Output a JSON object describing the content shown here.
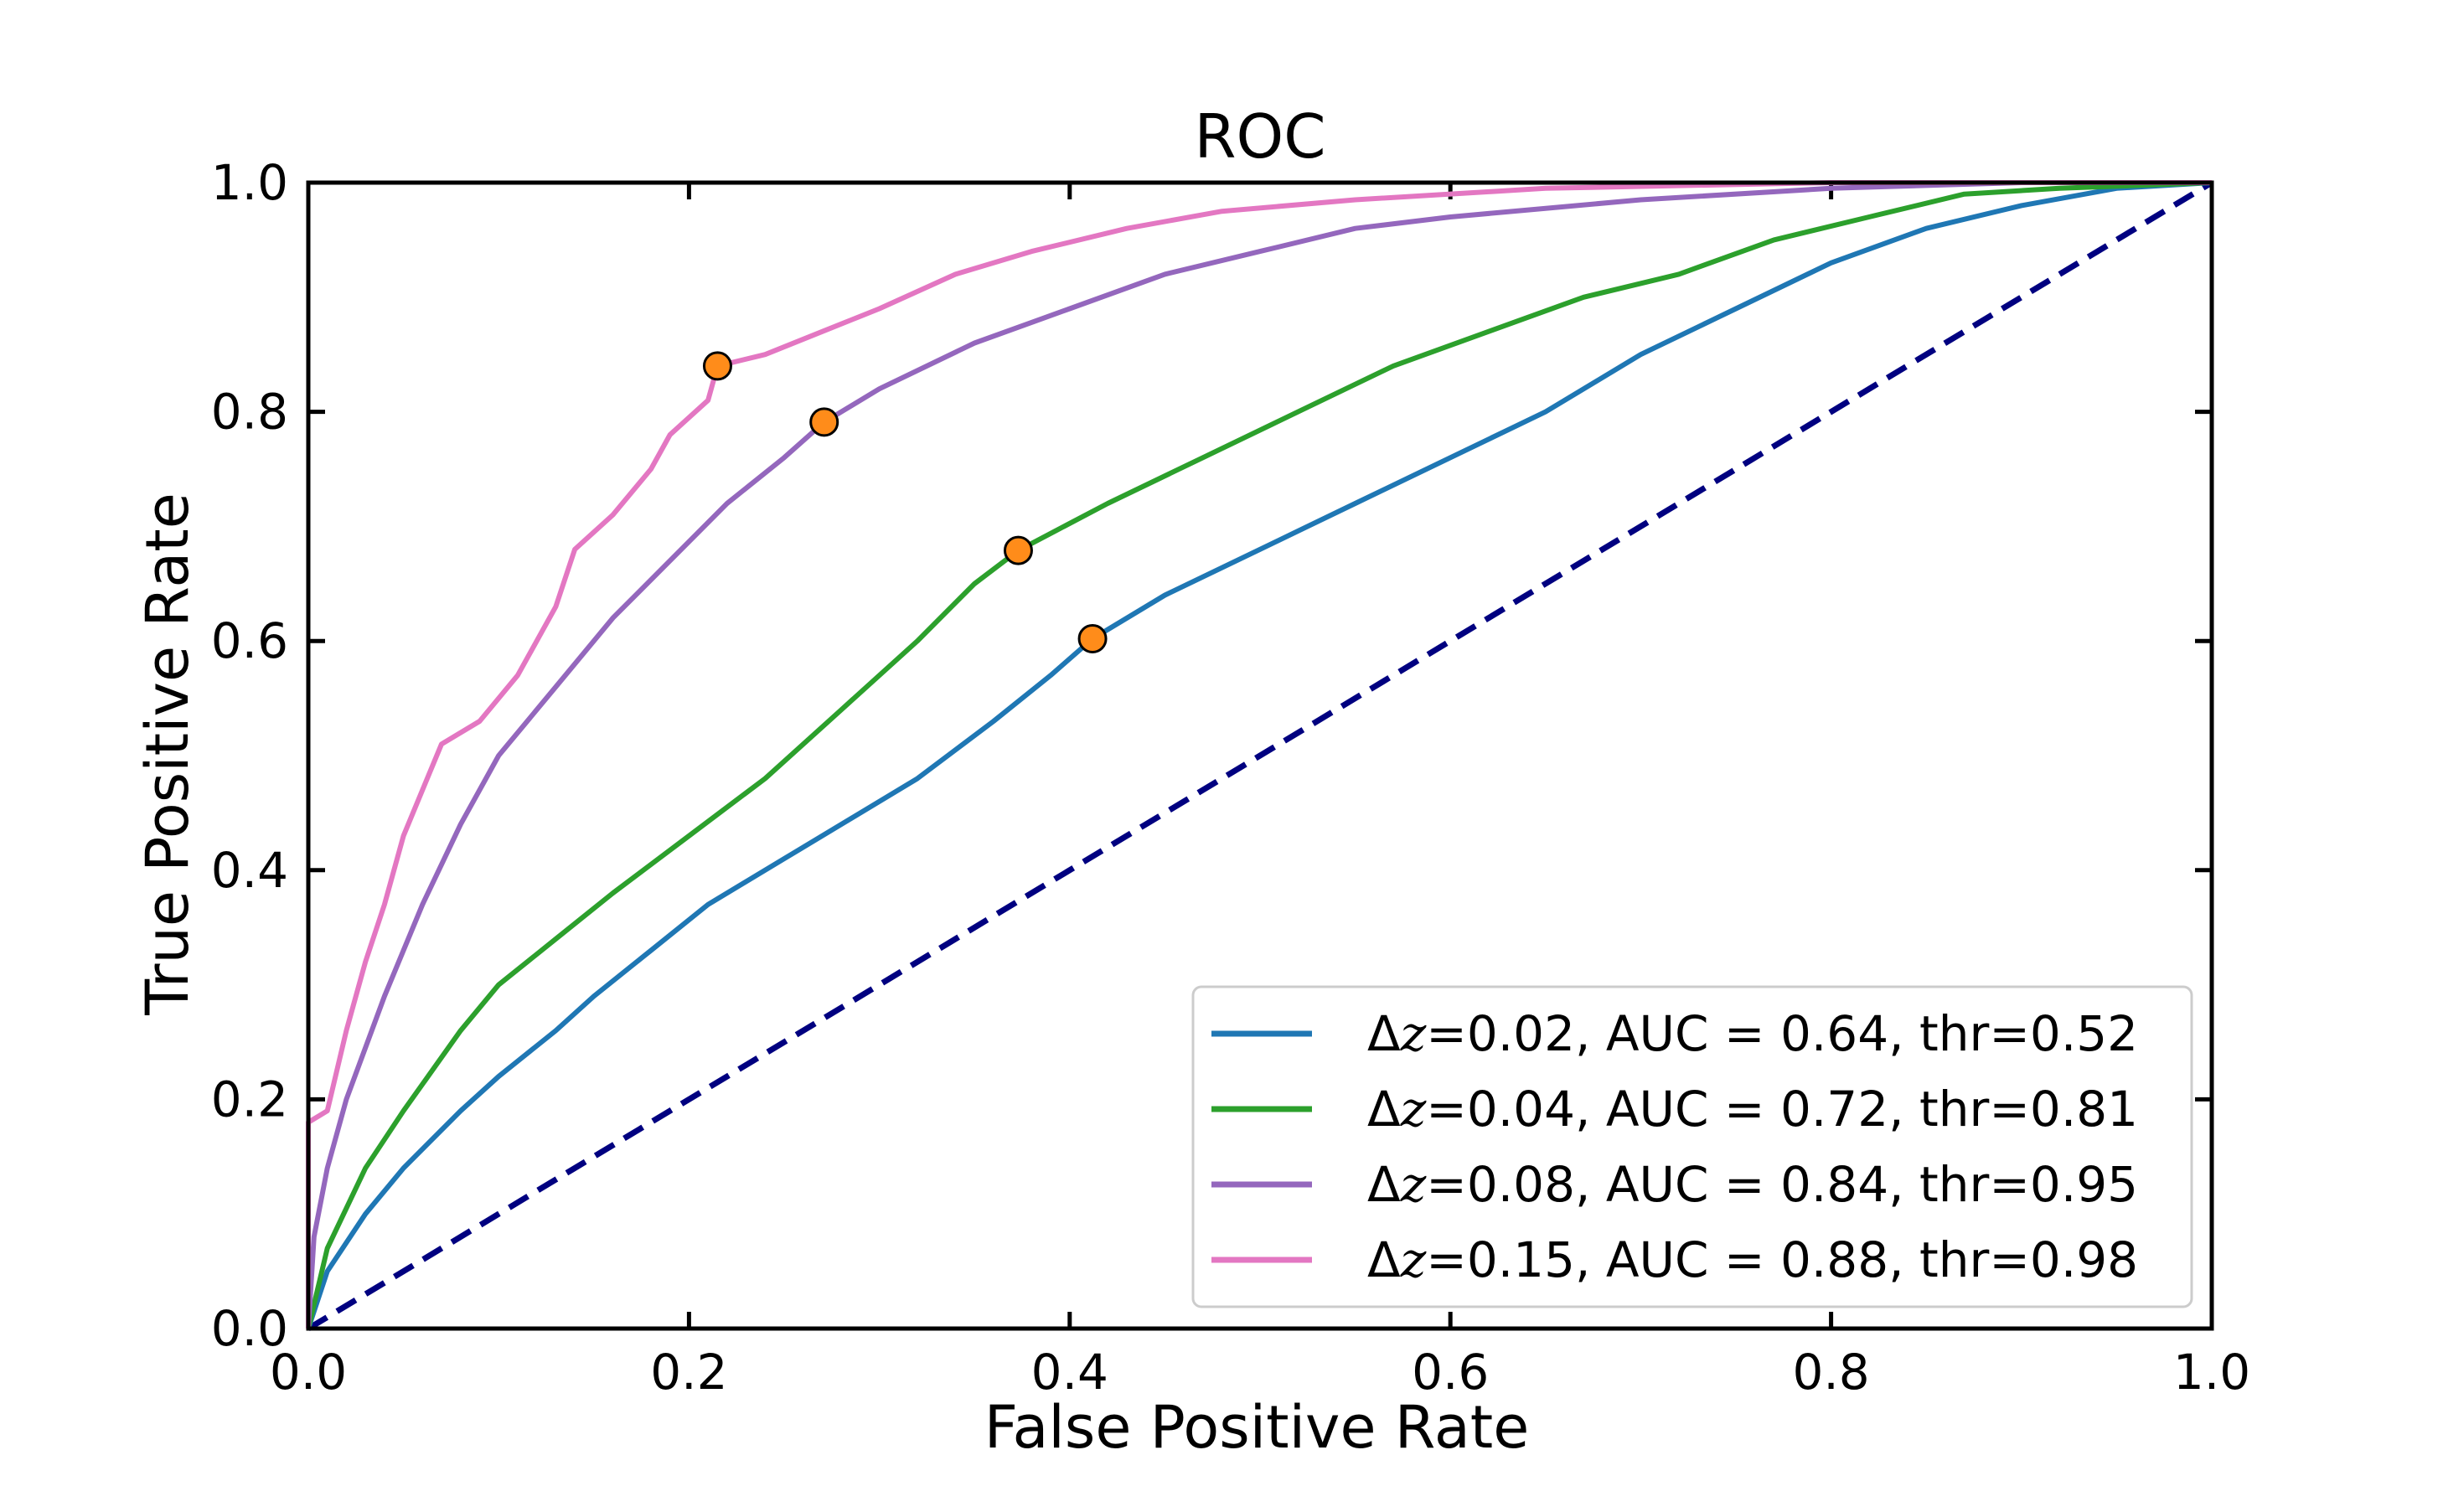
{
  "chart_data": {
    "type": "line",
    "title": "ROC",
    "xlabel": "False Positive Rate",
    "ylabel": "True Positive Rate",
    "xlim": [
      0.0,
      1.0
    ],
    "ylim": [
      0.0,
      1.0
    ],
    "xticks": [
      "0.0",
      "0.2",
      "0.4",
      "0.6",
      "0.8",
      "1.0"
    ],
    "yticks": [
      "0.0",
      "0.2",
      "0.4",
      "0.6",
      "0.8",
      "1.0"
    ],
    "grid": false,
    "legend_position": "lower-right",
    "reference_lines": [
      {
        "name": "perfect",
        "points": [
          [
            0,
            1
          ],
          [
            1,
            1
          ]
        ],
        "color": "#000000",
        "style": "dashed"
      },
      {
        "name": "chance",
        "points": [
          [
            0,
            0
          ],
          [
            1,
            1
          ]
        ],
        "color": "#000080",
        "style": "dashed"
      }
    ],
    "marker_color": "#ff8c1a",
    "series": [
      {
        "name": "Δz=0.02, AUC = 0.64, thr=0.52",
        "label_prefix": "Δ",
        "label_var": "z",
        "label_suffix": "=0.02, AUC = 0.64, thr=0.52",
        "color": "#1f77b4",
        "threshold_point": [
          0.412,
          0.602
        ],
        "points": [
          [
            0,
            0
          ],
          [
            0.01,
            0.05
          ],
          [
            0.03,
            0.1
          ],
          [
            0.05,
            0.14
          ],
          [
            0.08,
            0.19
          ],
          [
            0.1,
            0.22
          ],
          [
            0.13,
            0.26
          ],
          [
            0.15,
            0.29
          ],
          [
            0.18,
            0.33
          ],
          [
            0.21,
            0.37
          ],
          [
            0.25,
            0.41
          ],
          [
            0.28,
            0.44
          ],
          [
            0.32,
            0.48
          ],
          [
            0.36,
            0.53
          ],
          [
            0.39,
            0.57
          ],
          [
            0.412,
            0.602
          ],
          [
            0.45,
            0.64
          ],
          [
            0.5,
            0.68
          ],
          [
            0.55,
            0.72
          ],
          [
            0.6,
            0.76
          ],
          [
            0.65,
            0.8
          ],
          [
            0.7,
            0.85
          ],
          [
            0.75,
            0.89
          ],
          [
            0.8,
            0.93
          ],
          [
            0.85,
            0.96
          ],
          [
            0.9,
            0.98
          ],
          [
            0.95,
            0.995
          ],
          [
            1,
            1
          ]
        ]
      },
      {
        "name": "Δz=0.04, AUC = 0.72, thr=0.81",
        "label_prefix": "Δ",
        "label_var": "z",
        "label_suffix": "=0.04, AUC = 0.72, thr=0.81",
        "color": "#2ca02c",
        "threshold_point": [
          0.373,
          0.679
        ],
        "points": [
          [
            0,
            0
          ],
          [
            0.01,
            0.07
          ],
          [
            0.03,
            0.14
          ],
          [
            0.05,
            0.19
          ],
          [
            0.08,
            0.26
          ],
          [
            0.1,
            0.3
          ],
          [
            0.13,
            0.34
          ],
          [
            0.16,
            0.38
          ],
          [
            0.2,
            0.43
          ],
          [
            0.24,
            0.48
          ],
          [
            0.28,
            0.54
          ],
          [
            0.32,
            0.6
          ],
          [
            0.35,
            0.65
          ],
          [
            0.373,
            0.679
          ],
          [
            0.42,
            0.72
          ],
          [
            0.47,
            0.76
          ],
          [
            0.52,
            0.8
          ],
          [
            0.57,
            0.84
          ],
          [
            0.62,
            0.87
          ],
          [
            0.67,
            0.9
          ],
          [
            0.72,
            0.92
          ],
          [
            0.77,
            0.95
          ],
          [
            0.82,
            0.97
          ],
          [
            0.87,
            0.99
          ],
          [
            0.92,
            0.995
          ],
          [
            1,
            1
          ]
        ]
      },
      {
        "name": "Δz=0.08, AUC = 0.84, thr=0.95",
        "label_prefix": "Δ",
        "label_var": "z",
        "label_suffix": "=0.08, AUC = 0.84, thr=0.95",
        "color": "#9467bd",
        "threshold_point": [
          0.271,
          0.791
        ],
        "points": [
          [
            0,
            0
          ],
          [
            0.003,
            0.08
          ],
          [
            0.01,
            0.14
          ],
          [
            0.02,
            0.2
          ],
          [
            0.04,
            0.29
          ],
          [
            0.06,
            0.37
          ],
          [
            0.08,
            0.44
          ],
          [
            0.1,
            0.5
          ],
          [
            0.13,
            0.56
          ],
          [
            0.16,
            0.62
          ],
          [
            0.19,
            0.67
          ],
          [
            0.22,
            0.72
          ],
          [
            0.25,
            0.76
          ],
          [
            0.271,
            0.791
          ],
          [
            0.3,
            0.82
          ],
          [
            0.35,
            0.86
          ],
          [
            0.4,
            0.89
          ],
          [
            0.45,
            0.92
          ],
          [
            0.5,
            0.94
          ],
          [
            0.55,
            0.96
          ],
          [
            0.6,
            0.97
          ],
          [
            0.7,
            0.985
          ],
          [
            0.8,
            0.995
          ],
          [
            0.9,
            1.0
          ],
          [
            1,
            1
          ]
        ]
      },
      {
        "name": "Δz=0.15, AUC = 0.88, thr=0.98",
        "label_prefix": "Δ",
        "label_var": "z",
        "label_suffix": "=0.15, AUC = 0.88, thr=0.98",
        "color": "#e377c2",
        "threshold_point": [
          0.215,
          0.84
        ],
        "points": [
          [
            0,
            0
          ],
          [
            0,
            0.18
          ],
          [
            0.01,
            0.19
          ],
          [
            0.02,
            0.26
          ],
          [
            0.03,
            0.32
          ],
          [
            0.04,
            0.37
          ],
          [
            0.05,
            0.43
          ],
          [
            0.06,
            0.47
          ],
          [
            0.07,
            0.51
          ],
          [
            0.09,
            0.53
          ],
          [
            0.11,
            0.57
          ],
          [
            0.13,
            0.63
          ],
          [
            0.14,
            0.68
          ],
          [
            0.16,
            0.71
          ],
          [
            0.18,
            0.75
          ],
          [
            0.19,
            0.78
          ],
          [
            0.21,
            0.81
          ],
          [
            0.215,
            0.84
          ],
          [
            0.24,
            0.85
          ],
          [
            0.27,
            0.87
          ],
          [
            0.3,
            0.89
          ],
          [
            0.34,
            0.92
          ],
          [
            0.38,
            0.94
          ],
          [
            0.43,
            0.96
          ],
          [
            0.48,
            0.975
          ],
          [
            0.55,
            0.985
          ],
          [
            0.65,
            0.995
          ],
          [
            0.8,
            1.0
          ],
          [
            1,
            1
          ]
        ]
      }
    ]
  }
}
